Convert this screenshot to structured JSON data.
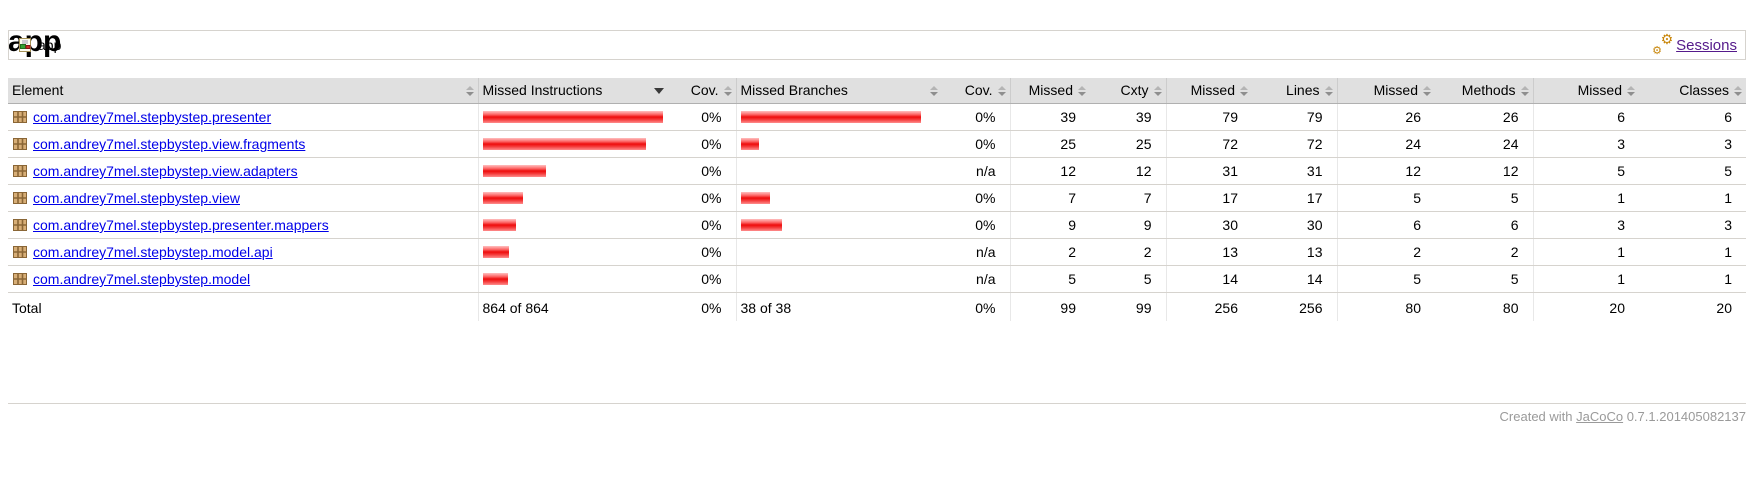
{
  "breadcrumb": {
    "label": "app",
    "sessions_label": "Sessions"
  },
  "page": {
    "title": "app"
  },
  "table": {
    "headers": [
      "Element",
      "Missed Instructions",
      "Cov.",
      "Missed Branches",
      "Cov.",
      "Missed",
      "Cxty",
      "Missed",
      "Lines",
      "Missed",
      "Methods",
      "Missed",
      "Classes"
    ],
    "sorted_column": "Missed Instructions",
    "bar_color": "#ee0c0c",
    "rows": [
      {
        "name": "com.andrey7mel.stepbystep.presenter",
        "inst_bar": 180,
        "inst_cov": "0%",
        "branch_bar": 180,
        "branch_cov": "0%",
        "missed": "39",
        "cxty": "39",
        "missed2": "79",
        "lines": "79",
        "missed3": "26",
        "methods": "26",
        "missed4": "6",
        "classes": "6"
      },
      {
        "name": "com.andrey7mel.stepbystep.view.fragments",
        "inst_bar": 163,
        "inst_cov": "0%",
        "branch_bar": 18,
        "branch_cov": "0%",
        "missed": "25",
        "cxty": "25",
        "missed2": "72",
        "lines": "72",
        "missed3": "24",
        "methods": "24",
        "missed4": "3",
        "classes": "3"
      },
      {
        "name": "com.andrey7mel.stepbystep.view.adapters",
        "inst_bar": 63,
        "inst_cov": "0%",
        "branch_bar": 0,
        "branch_cov": "n/a",
        "missed": "12",
        "cxty": "12",
        "missed2": "31",
        "lines": "31",
        "missed3": "12",
        "methods": "12",
        "missed4": "5",
        "classes": "5"
      },
      {
        "name": "com.andrey7mel.stepbystep.view",
        "inst_bar": 40,
        "inst_cov": "0%",
        "branch_bar": 29,
        "branch_cov": "0%",
        "missed": "7",
        "cxty": "7",
        "missed2": "17",
        "lines": "17",
        "missed3": "5",
        "methods": "5",
        "missed4": "1",
        "classes": "1"
      },
      {
        "name": "com.andrey7mel.stepbystep.presenter.mappers",
        "inst_bar": 33,
        "inst_cov": "0%",
        "branch_bar": 41,
        "branch_cov": "0%",
        "missed": "9",
        "cxty": "9",
        "missed2": "30",
        "lines": "30",
        "missed3": "6",
        "methods": "6",
        "missed4": "3",
        "classes": "3"
      },
      {
        "name": "com.andrey7mel.stepbystep.model.api",
        "inst_bar": 26,
        "inst_cov": "0%",
        "branch_bar": 0,
        "branch_cov": "n/a",
        "missed": "2",
        "cxty": "2",
        "missed2": "13",
        "lines": "13",
        "missed3": "2",
        "methods": "2",
        "missed4": "1",
        "classes": "1"
      },
      {
        "name": "com.andrey7mel.stepbystep.model",
        "inst_bar": 25,
        "inst_cov": "0%",
        "branch_bar": 0,
        "branch_cov": "n/a",
        "missed": "5",
        "cxty": "5",
        "missed2": "14",
        "lines": "14",
        "missed3": "5",
        "methods": "5",
        "missed4": "1",
        "classes": "1"
      }
    ],
    "total": {
      "label": "Total",
      "instructions": "864 of 864",
      "inst_cov": "0%",
      "branches": "38 of 38",
      "branch_cov": "0%",
      "missed": "99",
      "cxty": "99",
      "missed2": "256",
      "lines": "256",
      "missed3": "80",
      "methods": "80",
      "missed4": "20",
      "classes": "20"
    }
  },
  "footer": {
    "prefix": "Created with ",
    "jacoco": "JaCoCo",
    "version": " 0.7.1.201405082137"
  }
}
